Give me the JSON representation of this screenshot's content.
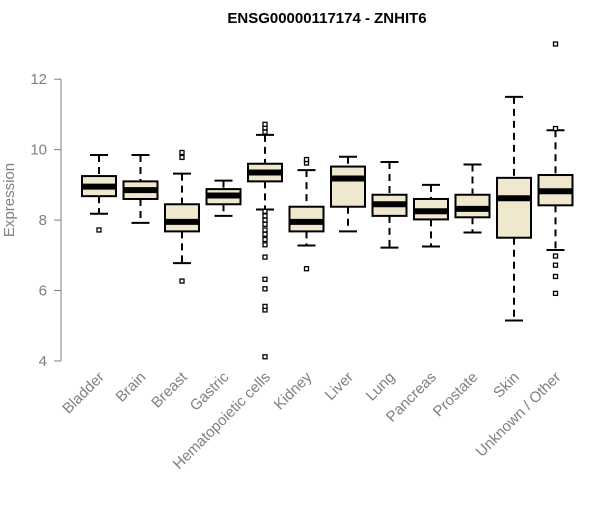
{
  "chart_data": {
    "type": "box",
    "title": "ENSG00000117174 - ZNHIT6",
    "xlabel": "",
    "ylabel": "Expression",
    "ylim": [
      4,
      13
    ],
    "yticks": [
      4,
      6,
      8,
      10,
      12
    ],
    "grid": false,
    "legend": "none",
    "colors": {
      "box_fill": "#efe8cf",
      "stroke": "#000000",
      "axis": "#808080",
      "label": "#808080"
    },
    "categories": [
      "Bladder",
      "Brain",
      "Breast",
      "Gastric",
      "Hematopoietic cells",
      "Kidney",
      "Liver",
      "Lung",
      "Pancreas",
      "Prostate",
      "Skin",
      "Unknown / Other"
    ],
    "boxes": [
      {
        "category": "Bladder",
        "whisker_low": 8.18,
        "q1": 8.68,
        "median": 8.95,
        "q3": 9.25,
        "whisker_high": 9.85,
        "outliers": [
          7.72
        ]
      },
      {
        "category": "Brain",
        "whisker_low": 7.92,
        "q1": 8.6,
        "median": 8.85,
        "q3": 9.1,
        "whisker_high": 9.85,
        "outliers": []
      },
      {
        "category": "Breast",
        "whisker_low": 6.78,
        "q1": 7.68,
        "median": 7.95,
        "q3": 8.45,
        "whisker_high": 9.32,
        "outliers": [
          6.27,
          9.78,
          9.92
        ]
      },
      {
        "category": "Gastric",
        "whisker_low": 8.12,
        "q1": 8.45,
        "median": 8.7,
        "q3": 8.88,
        "whisker_high": 9.12,
        "outliers": []
      },
      {
        "category": "Hematopoietic cells",
        "whisker_low": 8.3,
        "q1": 9.1,
        "median": 9.35,
        "q3": 9.6,
        "whisker_high": 10.42,
        "outliers": [
          4.12,
          5.45,
          5.55,
          6.05,
          6.32,
          6.95,
          7.3,
          7.45,
          7.6,
          7.72,
          7.88,
          8.0,
          8.12,
          8.25,
          10.5,
          10.62,
          10.72
        ]
      },
      {
        "category": "Kidney",
        "whisker_low": 7.28,
        "q1": 7.68,
        "median": 7.95,
        "q3": 8.38,
        "whisker_high": 9.42,
        "outliers": [
          6.62,
          9.62,
          9.72
        ]
      },
      {
        "category": "Liver",
        "whisker_low": 7.68,
        "q1": 8.38,
        "median": 9.18,
        "q3": 9.52,
        "whisker_high": 9.8,
        "outliers": []
      },
      {
        "category": "Lung",
        "whisker_low": 7.22,
        "q1": 8.12,
        "median": 8.45,
        "q3": 8.72,
        "whisker_high": 9.65,
        "outliers": []
      },
      {
        "category": "Pancreas",
        "whisker_low": 7.25,
        "q1": 8.02,
        "median": 8.25,
        "q3": 8.6,
        "whisker_high": 9.0,
        "outliers": []
      },
      {
        "category": "Prostate",
        "whisker_low": 7.65,
        "q1": 8.08,
        "median": 8.32,
        "q3": 8.72,
        "whisker_high": 9.58,
        "outliers": []
      },
      {
        "category": "Skin",
        "whisker_low": 5.15,
        "q1": 7.5,
        "median": 8.62,
        "q3": 9.2,
        "whisker_high": 11.5,
        "outliers": []
      },
      {
        "category": "Unknown / Other",
        "whisker_low": 7.15,
        "q1": 8.42,
        "median": 8.82,
        "q3": 9.28,
        "whisker_high": 10.55,
        "outliers": [
          5.92,
          6.4,
          6.72,
          6.98,
          10.6,
          13.0
        ]
      }
    ]
  }
}
